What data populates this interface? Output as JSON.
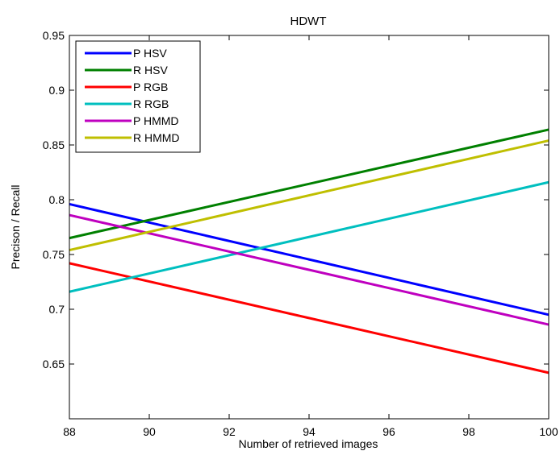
{
  "chart_data": {
    "type": "line",
    "title": "HDWT",
    "xlabel": "Number of retrieved images",
    "ylabel": "Precison / Recall",
    "xlim": [
      88,
      100
    ],
    "ylim": [
      0.6,
      0.95
    ],
    "xticks": [
      88,
      90,
      92,
      94,
      96,
      98,
      100
    ],
    "xtick_labels": [
      "88",
      "90",
      "92",
      "94",
      "96",
      "98",
      "100"
    ],
    "yticks": [
      0.65,
      0.7,
      0.75,
      0.8,
      0.85,
      0.9,
      0.95
    ],
    "ytick_labels": [
      "0.65",
      "0.7",
      "0.75",
      "0.8",
      "0.85",
      "0.9",
      "0.95"
    ],
    "grid": false,
    "legend_position": "top-left",
    "series": [
      {
        "name": "P HSV",
        "color": "#0000ff",
        "x": [
          88,
          100
        ],
        "y": [
          0.796,
          0.695
        ]
      },
      {
        "name": "R HSV",
        "color": "#008000",
        "x": [
          88,
          100
        ],
        "y": [
          0.765,
          0.864
        ]
      },
      {
        "name": "P RGB",
        "color": "#ff0000",
        "x": [
          88,
          100
        ],
        "y": [
          0.742,
          0.642
        ]
      },
      {
        "name": "R RGB",
        "color": "#00bfbf",
        "x": [
          88,
          100
        ],
        "y": [
          0.716,
          0.816
        ]
      },
      {
        "name": "P HMMD",
        "color": "#bf00bf",
        "x": [
          88,
          100
        ],
        "y": [
          0.786,
          0.686
        ]
      },
      {
        "name": "R HMMD",
        "color": "#bfbf00",
        "x": [
          88,
          100
        ],
        "y": [
          0.754,
          0.854
        ]
      }
    ]
  }
}
